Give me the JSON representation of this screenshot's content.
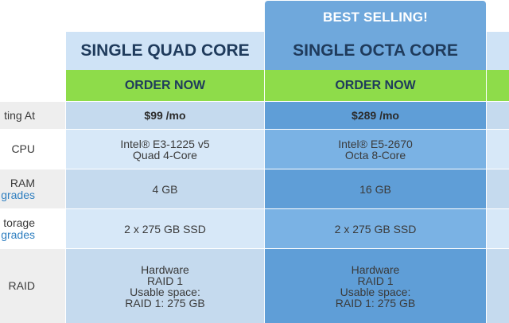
{
  "badge": "BEST SELLING!",
  "plans": [
    {
      "name": "SINGLE QUAD CORE",
      "order": "ORDER NOW"
    },
    {
      "name": "SINGLE OCTA CORE",
      "order": "ORDER NOW"
    }
  ],
  "rows": [
    {
      "label": "ting At",
      "link": "",
      "values": [
        [
          "$99 /mo"
        ],
        [
          "$289 /mo"
        ]
      ]
    },
    {
      "label": "CPU",
      "link": "",
      "values": [
        [
          "Intel® E3-1225 v5",
          "Quad 4-Core"
        ],
        [
          "Intel® E5-2670",
          "Octa 8-Core"
        ]
      ]
    },
    {
      "label": "RAM",
      "link": "grades",
      "values": [
        [
          "4 GB"
        ],
        [
          "16 GB"
        ]
      ]
    },
    {
      "label": "torage",
      "link": "grades",
      "values": [
        [
          "2 x 275 GB SSD"
        ],
        [
          "2 x 275 GB SSD"
        ]
      ]
    },
    {
      "label": "RAID",
      "link": "",
      "values": [
        [
          "Hardware",
          "RAID 1",
          "Usable space:",
          "RAID 1: 275 GB"
        ],
        [
          "Hardware",
          "RAID 1",
          "Usable space:",
          "RAID 1: 275 GB"
        ]
      ]
    }
  ],
  "colors": {
    "label_bg": "#eeeeee",
    "quad_header": "#cfe3f6",
    "octa_header": "#6fa8dc",
    "order_green": "#8edc4a",
    "link": "#2f7fc0"
  }
}
